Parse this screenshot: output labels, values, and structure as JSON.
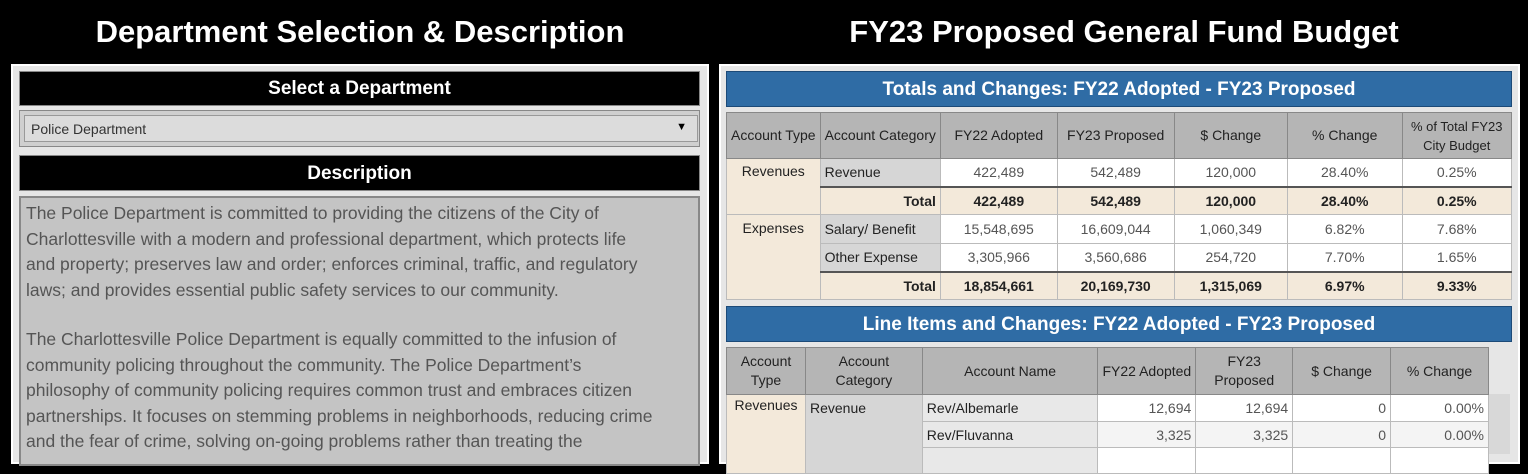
{
  "left": {
    "title": "Department Selection & Description",
    "select_label": "Select a Department",
    "selected": "Police Department",
    "description_label": "Description",
    "description": [
      [
        "The Police Department is committed to providing the citizens of the City of",
        "Charlottesville with a modern and professional department, which protects life",
        "and property; preserves law and order; enforces criminal, traffic, and regulatory",
        "laws; and provides essential public safety services to our community."
      ],
      [
        "The Charlottesville Police Department is equally committed to the infusion of",
        "community policing throughout the community. The Police Department’s",
        "philosophy of community policing requires common trust and embraces citizen",
        "partnerships. It focuses on stemming problems in neighborhoods, reducing crime",
        "and the fear of crime, solving on-going problems rather than treating the"
      ]
    ]
  },
  "right": {
    "title": "FY23 Proposed General Fund Budget",
    "totals": {
      "header": "Totals and Changes:  FY22 Adopted - FY23 Proposed",
      "columns": [
        "Account Type",
        "Account Category",
        "FY22 Adopted",
        "FY23 Proposed",
        "$ Change",
        "% Change",
        "% of Total FY23 City Budget"
      ],
      "rev_type": "Revenues",
      "exp_type": "Expenses",
      "total_label": "Total",
      "rev": [
        "Revenue",
        "422,489",
        "542,489",
        "120,000",
        "28.40%",
        "0.25%"
      ],
      "rev_total": [
        "422,489",
        "542,489",
        "120,000",
        "28.40%",
        "0.25%"
      ],
      "sal": [
        "Salary/ Benefit",
        "15,548,695",
        "16,609,044",
        "1,060,349",
        "6.82%",
        "7.68%"
      ],
      "oth": [
        "Other Expense",
        "3,305,966",
        "3,560,686",
        "254,720",
        "7.70%",
        "1.65%"
      ],
      "exp_total": [
        "18,854,661",
        "20,169,730",
        "1,315,069",
        "6.97%",
        "9.33%"
      ]
    },
    "lines": {
      "header": "Line Items and Changes:  FY22 Adopted - FY23 Proposed",
      "columns": [
        "Account Type",
        "Account Category",
        "Account Name",
        "FY22 Adopted",
        "FY23 Proposed",
        "$ Change",
        "% Change"
      ],
      "type": "Revenues",
      "category": "Revenue",
      "rows": [
        [
          "Rev/Albemarle",
          "12,694",
          "12,694",
          "0",
          "0.00%"
        ],
        [
          "Rev/Fluvanna",
          "3,325",
          "3,325",
          "0",
          "0.00%"
        ]
      ]
    }
  }
}
